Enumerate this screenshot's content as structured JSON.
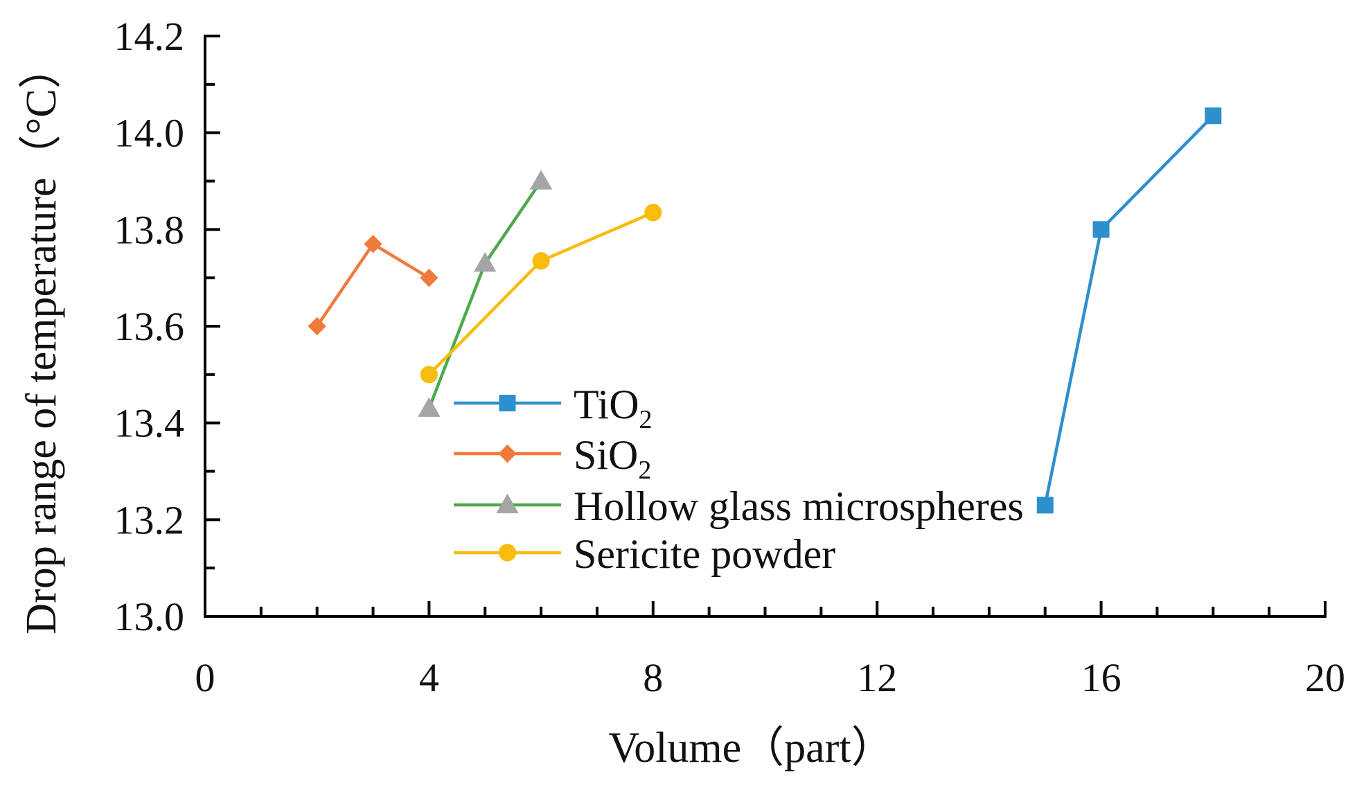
{
  "chart_data": {
    "type": "line",
    "title": "",
    "xlabel": "Volume（part）",
    "ylabel": "Drop range of temperature（°C）",
    "xlim": [
      0,
      20
    ],
    "ylim": [
      13.0,
      14.2
    ],
    "x_ticks": [
      "0",
      "4",
      "8",
      "12",
      "16",
      "20"
    ],
    "y_ticks": [
      "13.0",
      "13.2",
      "13.4",
      "13.6",
      "13.8",
      "14.0",
      "14.2"
    ],
    "grid": false,
    "legend_position": "center",
    "series": [
      {
        "name": "TiO2",
        "label_main": "TiO",
        "label_sub": "2",
        "color": "#2e8fce",
        "marker": "square",
        "x": [
          15,
          16,
          18
        ],
        "y": [
          13.23,
          13.8,
          14.035
        ]
      },
      {
        "name": "SiO2",
        "label_main": "SiO",
        "label_sub": "2",
        "color": "#f07a3c",
        "marker": "diamond",
        "x": [
          2,
          3,
          4
        ],
        "y": [
          13.6,
          13.77,
          13.7
        ]
      },
      {
        "name": "Hollow glass microspheres",
        "label_main": "Hollow glass microspheres",
        "label_sub": "",
        "color": "#4caa4a",
        "marker": "triangle",
        "marker_color": "#a5a5a5",
        "x": [
          4,
          5,
          6
        ],
        "y": [
          13.43,
          13.73,
          13.9
        ]
      },
      {
        "name": "Sericite powder",
        "label_main": "Sericite powder",
        "label_sub": "",
        "color": "#f7bc0c",
        "marker": "circle",
        "x": [
          4,
          6,
          8
        ],
        "y": [
          13.5,
          13.735,
          13.835
        ]
      }
    ]
  }
}
